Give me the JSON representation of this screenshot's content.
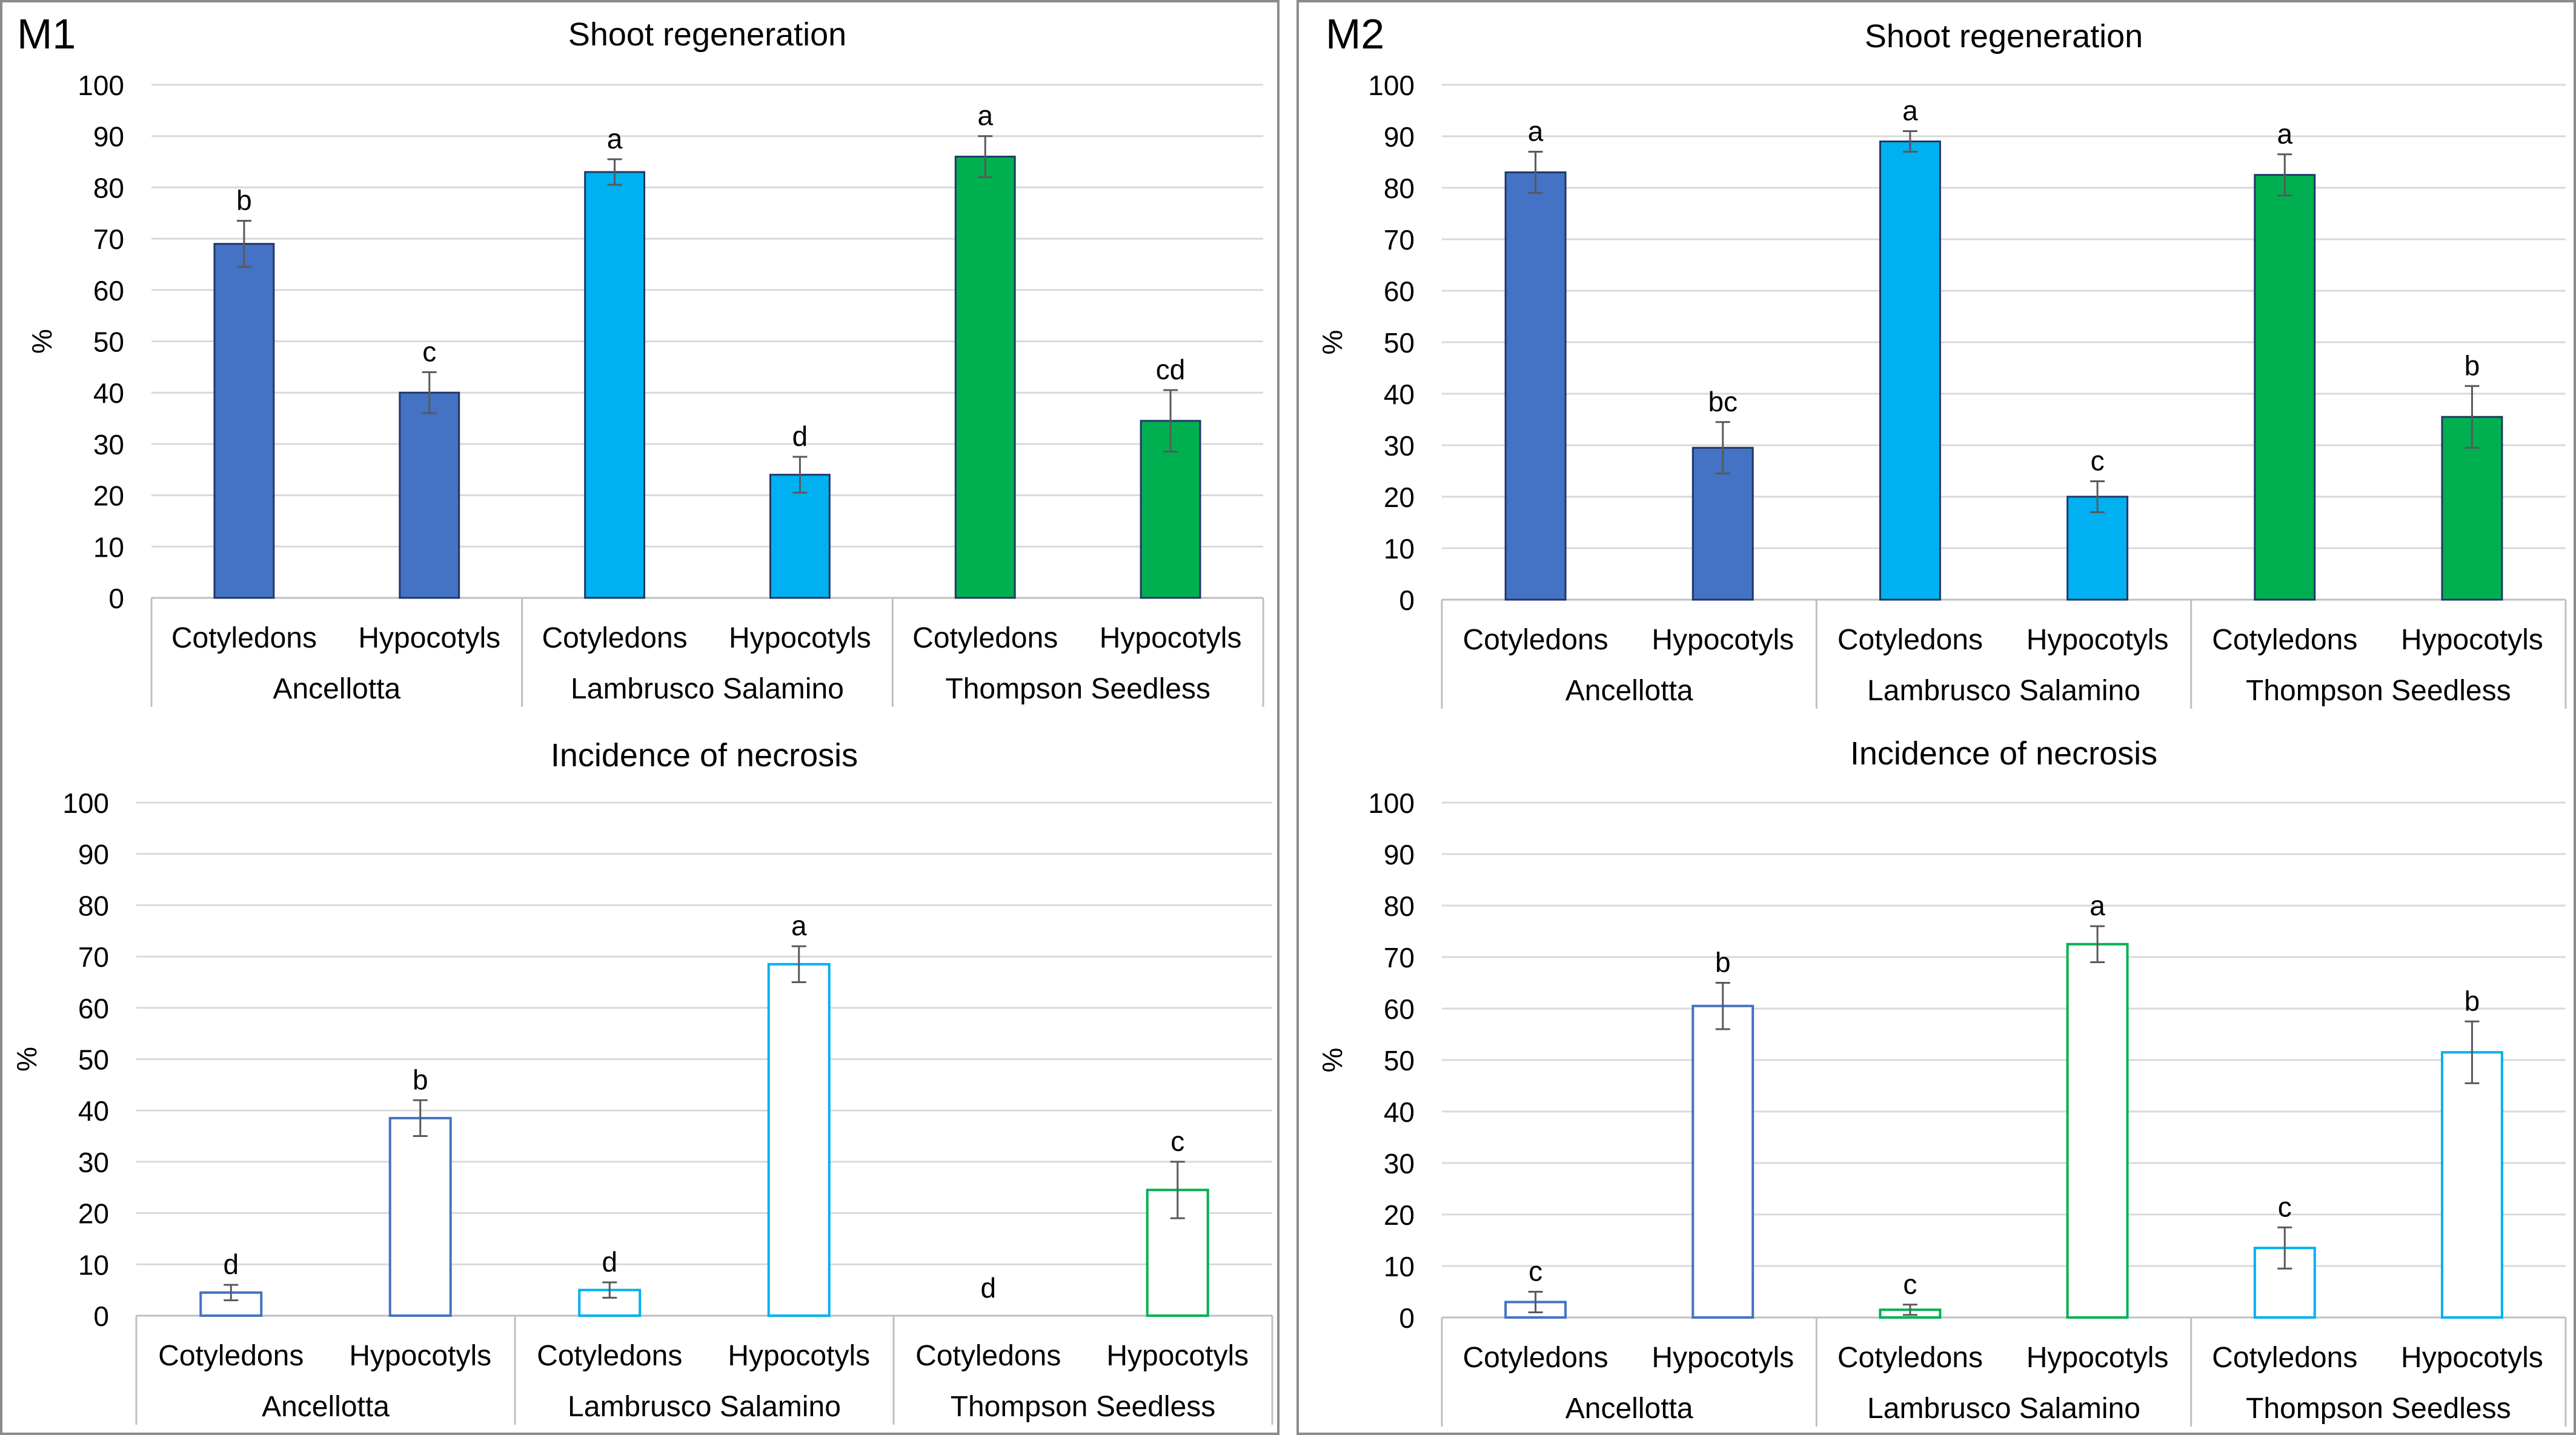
{
  "panels": [
    {
      "label": "M1",
      "charts": [
        {
          "type": "bar",
          "title": "Shoot regeneration",
          "ylabel": "%",
          "ylim": [
            0,
            100
          ],
          "yticks": [
            0,
            10,
            20,
            30,
            40,
            50,
            60,
            70,
            80,
            90,
            100
          ],
          "fill": "solid",
          "groups": [
            "Ancellotta",
            "Lambrusco Salamino",
            "Thompson Seedless"
          ],
          "subcategories": [
            "Cotyledons",
            "Hypocotyls"
          ],
          "bars": [
            {
              "group": "Ancellotta",
              "category": "Cotyledons",
              "value": 69,
              "error": 4.5,
              "letter": "b",
              "color": "#4472C4"
            },
            {
              "group": "Ancellotta",
              "category": "Hypocotyls",
              "value": 40,
              "error": 4,
              "letter": "c",
              "color": "#4472C4"
            },
            {
              "group": "Lambrusco Salamino",
              "category": "Cotyledons",
              "value": 83,
              "error": 2.5,
              "letter": "a",
              "color": "#00B0F0"
            },
            {
              "group": "Lambrusco Salamino",
              "category": "Hypocotyls",
              "value": 24,
              "error": 3.5,
              "letter": "d",
              "color": "#00B0F0"
            },
            {
              "group": "Thompson Seedless",
              "category": "Cotyledons",
              "value": 86,
              "error": 4,
              "letter": "a",
              "color": "#00B050"
            },
            {
              "group": "Thompson Seedless",
              "category": "Hypocotyls",
              "value": 34.5,
              "error": 6,
              "letter": "cd",
              "color": "#00B050"
            }
          ]
        },
        {
          "type": "bar",
          "title": "Incidence of necrosis",
          "ylabel": "%",
          "ylim": [
            0,
            100
          ],
          "yticks": [
            0,
            10,
            20,
            30,
            40,
            50,
            60,
            70,
            80,
            90,
            100
          ],
          "fill": "outline",
          "groups": [
            "Ancellotta",
            "Lambrusco Salamino",
            "Thompson Seedless"
          ],
          "subcategories": [
            "Cotyledons",
            "Hypocotyls"
          ],
          "bars": [
            {
              "group": "Ancellotta",
              "category": "Cotyledons",
              "value": 4.5,
              "error": 1.5,
              "letter": "d",
              "color": "#4472C4"
            },
            {
              "group": "Ancellotta",
              "category": "Hypocotyls",
              "value": 38.5,
              "error": 3.5,
              "letter": "b",
              "color": "#4472C4"
            },
            {
              "group": "Lambrusco Salamino",
              "category": "Cotyledons",
              "value": 5,
              "error": 1.5,
              "letter": "d",
              "color": "#00B0F0"
            },
            {
              "group": "Lambrusco Salamino",
              "category": "Hypocotyls",
              "value": 68.5,
              "error": 3.5,
              "letter": "a",
              "color": "#00B0F0"
            },
            {
              "group": "Thompson Seedless",
              "category": "Cotyledons",
              "value": 0,
              "error": 0,
              "letter": "d",
              "color": "#00B050"
            },
            {
              "group": "Thompson Seedless",
              "category": "Hypocotyls",
              "value": 24.5,
              "error": 5.5,
              "letter": "c",
              "color": "#00B050"
            }
          ]
        }
      ]
    },
    {
      "label": "M2",
      "charts": [
        {
          "type": "bar",
          "title": "Shoot regeneration",
          "ylabel": "%",
          "ylim": [
            0,
            100
          ],
          "yticks": [
            0,
            10,
            20,
            30,
            40,
            50,
            60,
            70,
            80,
            90,
            100
          ],
          "fill": "solid",
          "groups": [
            "Ancellotta",
            "Lambrusco Salamino",
            "Thompson Seedless"
          ],
          "subcategories": [
            "Cotyledons",
            "Hypocotyls"
          ],
          "bars": [
            {
              "group": "Ancellotta",
              "category": "Cotyledons",
              "value": 83,
              "error": 4,
              "letter": "a",
              "color": "#4472C4"
            },
            {
              "group": "Ancellotta",
              "category": "Hypocotyls",
              "value": 29.5,
              "error": 5,
              "letter": "bc",
              "color": "#4472C4"
            },
            {
              "group": "Lambrusco Salamino",
              "category": "Cotyledons",
              "value": 89,
              "error": 2,
              "letter": "a",
              "color": "#00B0F0"
            },
            {
              "group": "Lambrusco Salamino",
              "category": "Hypocotyls",
              "value": 20,
              "error": 3,
              "letter": "c",
              "color": "#00B0F0"
            },
            {
              "group": "Thompson Seedless",
              "category": "Cotyledons",
              "value": 82.5,
              "error": 4,
              "letter": "a",
              "color": "#00B050"
            },
            {
              "group": "Thompson Seedless",
              "category": "Hypocotyls",
              "value": 35.5,
              "error": 6,
              "letter": "b",
              "color": "#00B050"
            }
          ]
        },
        {
          "type": "bar",
          "title": "Incidence of necrosis",
          "ylabel": "%",
          "ylim": [
            0,
            100
          ],
          "yticks": [
            0,
            10,
            20,
            30,
            40,
            50,
            60,
            70,
            80,
            90,
            100
          ],
          "fill": "outline",
          "groups": [
            "Ancellotta",
            "Lambrusco Salamino",
            "Thompson Seedless"
          ],
          "subcategories": [
            "Cotyledons",
            "Hypocotyls"
          ],
          "bars": [
            {
              "group": "Ancellotta",
              "category": "Cotyledons",
              "value": 3,
              "error": 2,
              "letter": "c",
              "color": "#4472C4"
            },
            {
              "group": "Ancellotta",
              "category": "Hypocotyls",
              "value": 60.5,
              "error": 4.5,
              "letter": "b",
              "color": "#4472C4"
            },
            {
              "group": "Lambrusco Salamino",
              "category": "Cotyledons",
              "value": 1.5,
              "error": 1,
              "letter": "c",
              "color": "#00B050"
            },
            {
              "group": "Lambrusco Salamino",
              "category": "Hypocotyls",
              "value": 72.5,
              "error": 3.5,
              "letter": "a",
              "color": "#00B050"
            },
            {
              "group": "Thompson Seedless",
              "category": "Cotyledons",
              "value": 13.5,
              "error": 4,
              "letter": "c",
              "color": "#00B0F0"
            },
            {
              "group": "Thompson Seedless",
              "category": "Hypocotyls",
              "value": 51.5,
              "error": 6,
              "letter": "b",
              "color": "#00B0F0"
            }
          ]
        }
      ]
    }
  ],
  "chart_data": [
    {
      "panel": "M1",
      "type": "bar",
      "title": "Shoot regeneration",
      "ylabel": "%",
      "ylim": [
        0,
        100
      ],
      "categories": [
        "Ancellotta Cotyledons",
        "Ancellotta Hypocotyls",
        "Lambrusco Salamino Cotyledons",
        "Lambrusco Salamino Hypocotyls",
        "Thompson Seedless Cotyledons",
        "Thompson Seedless Hypocotyls"
      ],
      "values": [
        69,
        40,
        83,
        24,
        86,
        34.5
      ],
      "errors": [
        4.5,
        4,
        2.5,
        3.5,
        4,
        6
      ],
      "letters": [
        "b",
        "c",
        "a",
        "d",
        "a",
        "cd"
      ]
    },
    {
      "panel": "M1",
      "type": "bar",
      "title": "Incidence of necrosis",
      "ylabel": "%",
      "ylim": [
        0,
        100
      ],
      "categories": [
        "Ancellotta Cotyledons",
        "Ancellotta Hypocotyls",
        "Lambrusco Salamino Cotyledons",
        "Lambrusco Salamino Hypocotyls",
        "Thompson Seedless Cotyledons",
        "Thompson Seedless Hypocotyls"
      ],
      "values": [
        4.5,
        38.5,
        5,
        68.5,
        0,
        24.5
      ],
      "errors": [
        1.5,
        3.5,
        1.5,
        3.5,
        0,
        5.5
      ],
      "letters": [
        "d",
        "b",
        "d",
        "a",
        "d",
        "c"
      ]
    },
    {
      "panel": "M2",
      "type": "bar",
      "title": "Shoot regeneration",
      "ylabel": "%",
      "ylim": [
        0,
        100
      ],
      "categories": [
        "Ancellotta Cotyledons",
        "Ancellotta Hypocotyls",
        "Lambrusco Salamino Cotyledons",
        "Lambrusco Salamino Hypocotyls",
        "Thompson Seedless Cotyledons",
        "Thompson Seedless Hypocotyls"
      ],
      "values": [
        83,
        29.5,
        89,
        20,
        82.5,
        35.5
      ],
      "errors": [
        4,
        5,
        2,
        3,
        4,
        6
      ],
      "letters": [
        "a",
        "bc",
        "a",
        "c",
        "a",
        "b"
      ]
    },
    {
      "panel": "M2",
      "type": "bar",
      "title": "Incidence of necrosis",
      "ylabel": "%",
      "ylim": [
        0,
        100
      ],
      "categories": [
        "Ancellotta Cotyledons",
        "Ancellotta Hypocotyls",
        "Lambrusco Salamino Cotyledons",
        "Lambrusco Salamino Hypocotyls",
        "Thompson Seedless Cotyledons",
        "Thompson Seedless Hypocotyls"
      ],
      "values": [
        3,
        60.5,
        1.5,
        72.5,
        13.5,
        51.5
      ],
      "errors": [
        2,
        4.5,
        1,
        3.5,
        4,
        6
      ],
      "letters": [
        "c",
        "b",
        "c",
        "a",
        "c",
        "b"
      ]
    }
  ]
}
